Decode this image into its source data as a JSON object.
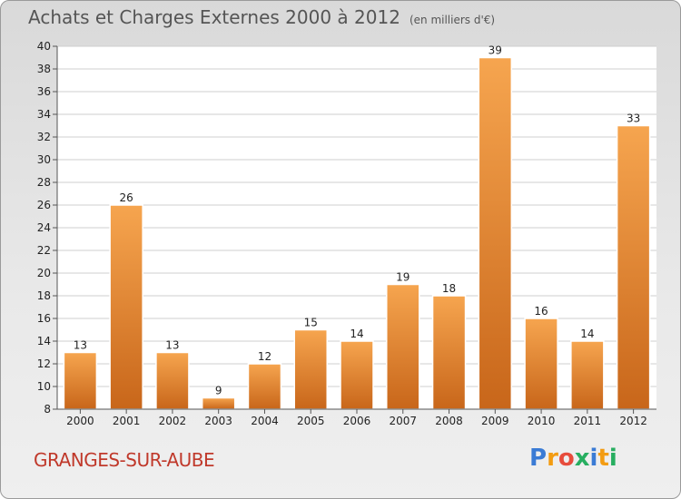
{
  "header": {
    "title": "Achats et Charges Externes 2000 à 2012",
    "subtitle": "(en milliers d'€)"
  },
  "footer": {
    "commune": "GRANGES-SUR-AUBE",
    "logo_text": "Proxiti",
    "logo_letters": [
      {
        "ch": "P",
        "color": "#3a7bd5"
      },
      {
        "ch": "r",
        "color": "#f39c12"
      },
      {
        "ch": "o",
        "color": "#e74c3c"
      },
      {
        "ch": "x",
        "color": "#27ae60"
      },
      {
        "ch": "i",
        "color": "#3a7bd5"
      },
      {
        "ch": "t",
        "color": "#f39c12"
      },
      {
        "ch": "i",
        "color": "#27ae60"
      }
    ]
  },
  "chart_data": {
    "type": "bar",
    "categories": [
      "2000",
      "2001",
      "2002",
      "2003",
      "2004",
      "2005",
      "2006",
      "2007",
      "2008",
      "2009",
      "2010",
      "2011",
      "2012"
    ],
    "values": [
      13,
      26,
      13,
      9,
      12,
      15,
      14,
      19,
      18,
      39,
      16,
      14,
      33
    ],
    "ylim": [
      8,
      40
    ],
    "yticks": [
      8,
      10,
      12,
      14,
      16,
      18,
      20,
      22,
      24,
      26,
      28,
      30,
      32,
      34,
      36,
      38,
      40
    ],
    "grid": true,
    "bar_color_light": "#f6a54f",
    "bar_color_dark": "#c8661a"
  }
}
